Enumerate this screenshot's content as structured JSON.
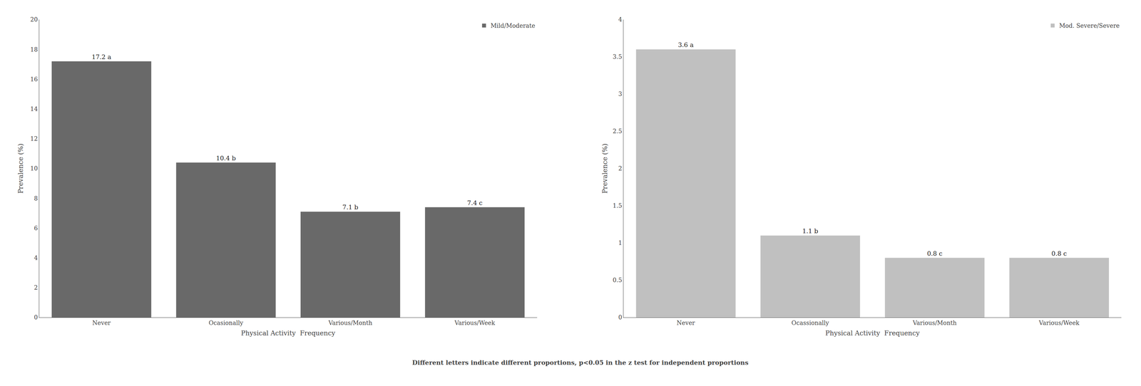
{
  "chart_data": [
    {
      "type": "bar",
      "categories": [
        "Never",
        "Ocasionally",
        "Various/Month",
        "Various/Week"
      ],
      "series": [
        {
          "name": "Mild/Moderate",
          "color": "#696969",
          "values": [
            17.2,
            10.4,
            7.1,
            7.4
          ],
          "value_labels": [
            "17.2 a",
            "10.4 b",
            "7.1 b",
            "7.4 c"
          ]
        }
      ],
      "xlabel": "Physical Activity  Frequency",
      "ylabel": "Prevalence (%)",
      "ylim": [
        0,
        20
      ],
      "yticks": [
        0,
        2,
        4,
        6,
        8,
        10,
        12,
        14,
        16,
        18,
        20
      ],
      "data_labels": true,
      "grid": false,
      "legend": "upper right"
    },
    {
      "type": "bar",
      "categories": [
        "Never",
        "Ocassionally",
        "Various/Month",
        "Various/Week"
      ],
      "series": [
        {
          "name": "Mod. Severe/Severe",
          "color": "#c0c0c0",
          "values": [
            3.6,
            1.1,
            0.8,
            0.8
          ],
          "value_labels": [
            "3.6 a",
            "1.1 b",
            "0.8 c",
            "0.8 c"
          ]
        }
      ],
      "xlabel": "Physical Activity  Frequency",
      "ylabel": "Prevalence (%)",
      "ylim": [
        0,
        4
      ],
      "yticks": [
        0,
        0.5,
        1,
        1.5,
        2,
        2.5,
        3,
        3.5,
        4
      ],
      "data_labels": true,
      "grid": false,
      "legend": "upper right"
    }
  ],
  "footnote": "Different letters indicate different proportions, p<0.05 in the z test for independent proportions"
}
